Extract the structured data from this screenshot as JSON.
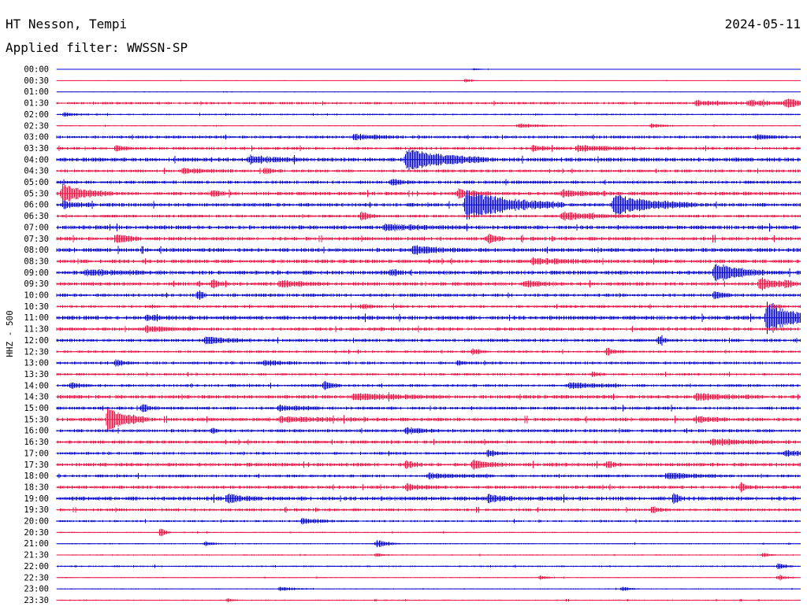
{
  "header": {
    "station": "HT Nesson, Tempi",
    "date": "2024-05-11",
    "filter": "Applied filter: WWSSN-SP"
  },
  "chart_data": {
    "type": "line",
    "title": "HT Nesson, Tempi",
    "subtitle": "Applied filter: WWSSN-SP",
    "ylabel": "HHZ - 500",
    "colors": [
      "#0000cc",
      "#ee1144"
    ],
    "rows": [
      "00:00",
      "00:30",
      "01:00",
      "01:30",
      "02:00",
      "02:30",
      "03:00",
      "03:30",
      "04:00",
      "04:30",
      "05:00",
      "05:30",
      "06:00",
      "06:30",
      "07:00",
      "07:30",
      "08:00",
      "08:30",
      "09:00",
      "09:30",
      "10:00",
      "10:30",
      "11:00",
      "11:30",
      "12:00",
      "12:30",
      "13:00",
      "13:30",
      "14:00",
      "14:30",
      "15:00",
      "15:30",
      "16:00",
      "16:30",
      "17:00",
      "17:30",
      "18:00",
      "18:30",
      "19:00",
      "19:30",
      "20:00",
      "20:30",
      "21:00",
      "21:30",
      "22:00",
      "22:30",
      "23:00",
      "23:30"
    ],
    "noise": [
      0.2,
      0.3,
      0.3,
      1.2,
      0.8,
      0.6,
      1.4,
      1.4,
      2.0,
      1.4,
      1.6,
      1.8,
      1.8,
      1.4,
      2.0,
      1.8,
      2.0,
      1.8,
      2.0,
      1.8,
      1.6,
      1.4,
      2.0,
      1.6,
      1.6,
      1.2,
      1.4,
      1.2,
      1.4,
      1.8,
      1.6,
      1.8,
      1.6,
      1.6,
      1.4,
      1.8,
      1.4,
      1.6,
      2.0,
      1.4,
      1.0,
      0.6,
      0.6,
      0.6,
      0.8,
      0.5,
      0.5,
      0.6
    ],
    "events": [
      {
        "row": 0,
        "t": 0.56,
        "amp": 1.5,
        "dur": 0.012
      },
      {
        "row": 1,
        "t": 0.55,
        "amp": 2.5,
        "dur": 0.008
      },
      {
        "row": 3,
        "t": 0.86,
        "amp": 3.0,
        "dur": 0.03
      },
      {
        "row": 3,
        "t": 0.93,
        "amp": 4.0,
        "dur": 0.03
      },
      {
        "row": 3,
        "t": 0.98,
        "amp": 5.0,
        "dur": 0.03
      },
      {
        "row": 4,
        "t": 0.01,
        "amp": 2.5,
        "dur": 0.015
      },
      {
        "row": 5,
        "t": 0.62,
        "amp": 2.5,
        "dur": 0.03
      },
      {
        "row": 5,
        "t": 0.8,
        "amp": 3.0,
        "dur": 0.015
      },
      {
        "row": 6,
        "t": 0.4,
        "amp": 3.5,
        "dur": 0.03
      },
      {
        "row": 6,
        "t": 0.94,
        "amp": 3.0,
        "dur": 0.02
      },
      {
        "row": 7,
        "t": 0.08,
        "amp": 3.5,
        "dur": 0.01
      },
      {
        "row": 7,
        "t": 0.64,
        "amp": 3.5,
        "dur": 0.02
      },
      {
        "row": 7,
        "t": 0.7,
        "amp": 4.0,
        "dur": 0.04
      },
      {
        "row": 8,
        "t": 0.26,
        "amp": 4.5,
        "dur": 0.03
      },
      {
        "row": 8,
        "t": 0.47,
        "amp": 14.0,
        "dur": 0.05
      },
      {
        "row": 9,
        "t": 0.17,
        "amp": 3.5,
        "dur": 0.03
      },
      {
        "row": 9,
        "t": 0.28,
        "amp": 4.0,
        "dur": 0.01
      },
      {
        "row": 10,
        "t": 0.45,
        "amp": 3.5,
        "dur": 0.015
      },
      {
        "row": 11,
        "t": 0.008,
        "amp": 12.0,
        "dur": 0.03
      },
      {
        "row": 11,
        "t": 0.21,
        "amp": 3.5,
        "dur": 0.01
      },
      {
        "row": 11,
        "t": 0.54,
        "amp": 5.0,
        "dur": 0.02
      },
      {
        "row": 11,
        "t": 0.68,
        "amp": 3.5,
        "dur": 0.03
      },
      {
        "row": 12,
        "t": 0.01,
        "amp": 4.0,
        "dur": 0.02
      },
      {
        "row": 12,
        "t": 0.55,
        "amp": 18.0,
        "dur": 0.06
      },
      {
        "row": 12,
        "t": 0.75,
        "amp": 14.0,
        "dur": 0.05
      },
      {
        "row": 13,
        "t": 0.41,
        "amp": 6.0,
        "dur": 0.01
      },
      {
        "row": 13,
        "t": 0.68,
        "amp": 4.5,
        "dur": 0.05
      },
      {
        "row": 14,
        "t": 0.44,
        "amp": 3.0,
        "dur": 0.05
      },
      {
        "row": 15,
        "t": 0.08,
        "amp": 7.0,
        "dur": 0.015
      },
      {
        "row": 15,
        "t": 0.58,
        "amp": 6.0,
        "dur": 0.01
      },
      {
        "row": 16,
        "t": 0.48,
        "amp": 5.0,
        "dur": 0.03
      },
      {
        "row": 17,
        "t": 0.64,
        "amp": 3.5,
        "dur": 0.04
      },
      {
        "row": 18,
        "t": 0.04,
        "amp": 3.0,
        "dur": 0.05
      },
      {
        "row": 18,
        "t": 0.45,
        "amp": 4.0,
        "dur": 0.01
      },
      {
        "row": 18,
        "t": 0.885,
        "amp": 13.0,
        "dur": 0.03
      },
      {
        "row": 19,
        "t": 0.21,
        "amp": 6.0,
        "dur": 0.01
      },
      {
        "row": 19,
        "t": 0.3,
        "amp": 4.0,
        "dur": 0.03
      },
      {
        "row": 19,
        "t": 0.63,
        "amp": 4.0,
        "dur": 0.02
      },
      {
        "row": 19,
        "t": 0.945,
        "amp": 8.0,
        "dur": 0.02
      },
      {
        "row": 19,
        "t": 0.98,
        "amp": 4.0,
        "dur": 0.01
      },
      {
        "row": 20,
        "t": 0.19,
        "amp": 7.0,
        "dur": 0.005
      },
      {
        "row": 20,
        "t": 0.885,
        "amp": 6.0,
        "dur": 0.01
      },
      {
        "row": 21,
        "t": 0.41,
        "amp": 3.0,
        "dur": 0.01
      },
      {
        "row": 21,
        "t": 0.96,
        "amp": 3.5,
        "dur": 0.01
      },
      {
        "row": 22,
        "t": 0.955,
        "amp": 22.0,
        "dur": 0.03
      },
      {
        "row": 22,
        "t": 0.12,
        "amp": 3.0,
        "dur": 0.02
      },
      {
        "row": 23,
        "t": 0.12,
        "amp": 3.5,
        "dur": 0.03
      },
      {
        "row": 24,
        "t": 0.2,
        "amp": 4.0,
        "dur": 0.03
      },
      {
        "row": 24,
        "t": 0.81,
        "amp": 6.0,
        "dur": 0.005
      },
      {
        "row": 25,
        "t": 0.56,
        "amp": 3.5,
        "dur": 0.01
      },
      {
        "row": 25,
        "t": 0.74,
        "amp": 5.0,
        "dur": 0.01
      },
      {
        "row": 26,
        "t": 0.08,
        "amp": 4.0,
        "dur": 0.01
      },
      {
        "row": 26,
        "t": 0.28,
        "amp": 3.5,
        "dur": 0.02
      },
      {
        "row": 26,
        "t": 0.54,
        "amp": 3.5,
        "dur": 0.01
      },
      {
        "row": 27,
        "t": 0.72,
        "amp": 3.0,
        "dur": 0.01
      },
      {
        "row": 28,
        "t": 0.02,
        "amp": 4.0,
        "dur": 0.01
      },
      {
        "row": 28,
        "t": 0.36,
        "amp": 6.0,
        "dur": 0.01
      },
      {
        "row": 28,
        "t": 0.69,
        "amp": 4.0,
        "dur": 0.03
      },
      {
        "row": 29,
        "t": 0.4,
        "amp": 3.5,
        "dur": 0.06
      },
      {
        "row": 29,
        "t": 0.86,
        "amp": 4.0,
        "dur": 0.04
      },
      {
        "row": 30,
        "t": 0.115,
        "amp": 4.5,
        "dur": 0.01
      },
      {
        "row": 30,
        "t": 0.3,
        "amp": 3.0,
        "dur": 0.03
      },
      {
        "row": 31,
        "t": 0.069,
        "amp": 16.0,
        "dur": 0.025
      },
      {
        "row": 31,
        "t": 0.3,
        "amp": 3.0,
        "dur": 0.05
      },
      {
        "row": 31,
        "t": 0.86,
        "amp": 4.0,
        "dur": 0.02
      },
      {
        "row": 32,
        "t": 0.21,
        "amp": 4.0,
        "dur": 0.005
      },
      {
        "row": 32,
        "t": 0.47,
        "amp": 3.5,
        "dur": 0.02
      },
      {
        "row": 33,
        "t": 0.88,
        "amp": 3.5,
        "dur": 0.05
      },
      {
        "row": 34,
        "t": 0.58,
        "amp": 5.0,
        "dur": 0.01
      },
      {
        "row": 34,
        "t": 0.98,
        "amp": 4.0,
        "dur": 0.02
      },
      {
        "row": 35,
        "t": 0.47,
        "amp": 4.5,
        "dur": 0.01
      },
      {
        "row": 35,
        "t": 0.56,
        "amp": 6.0,
        "dur": 0.02
      },
      {
        "row": 35,
        "t": 0.74,
        "amp": 4.5,
        "dur": 0.01
      },
      {
        "row": 36,
        "t": 0.5,
        "amp": 3.0,
        "dur": 0.04
      },
      {
        "row": 36,
        "t": 0.82,
        "amp": 4.0,
        "dur": 0.04
      },
      {
        "row": 37,
        "t": 0.47,
        "amp": 4.0,
        "dur": 0.02
      },
      {
        "row": 37,
        "t": 0.92,
        "amp": 4.5,
        "dur": 0.01
      },
      {
        "row": 38,
        "t": 0.23,
        "amp": 5.5,
        "dur": 0.02
      },
      {
        "row": 38,
        "t": 0.58,
        "amp": 5.0,
        "dur": 0.02
      },
      {
        "row": 38,
        "t": 0.83,
        "amp": 7.0,
        "dur": 0.005
      },
      {
        "row": 39,
        "t": 0.8,
        "amp": 4.5,
        "dur": 0.01
      },
      {
        "row": 40,
        "t": 0.33,
        "amp": 4.0,
        "dur": 0.02
      },
      {
        "row": 41,
        "t": 0.14,
        "amp": 6.0,
        "dur": 0.006
      },
      {
        "row": 42,
        "t": 0.43,
        "amp": 5.0,
        "dur": 0.015
      },
      {
        "row": 42,
        "t": 0.2,
        "amp": 3.0,
        "dur": 0.01
      },
      {
        "row": 43,
        "t": 0.43,
        "amp": 2.5,
        "dur": 0.01
      },
      {
        "row": 43,
        "t": 0.95,
        "amp": 3.0,
        "dur": 0.008
      },
      {
        "row": 44,
        "t": 0.97,
        "amp": 4.0,
        "dur": 0.01
      },
      {
        "row": 45,
        "t": 0.65,
        "amp": 2.5,
        "dur": 0.01
      },
      {
        "row": 45,
        "t": 0.97,
        "amp": 3.5,
        "dur": 0.01
      },
      {
        "row": 46,
        "t": 0.3,
        "amp": 2.5,
        "dur": 0.02
      },
      {
        "row": 46,
        "t": 0.76,
        "amp": 3.0,
        "dur": 0.01
      },
      {
        "row": 47,
        "t": 0.23,
        "amp": 3.0,
        "dur": 0.006
      }
    ]
  }
}
